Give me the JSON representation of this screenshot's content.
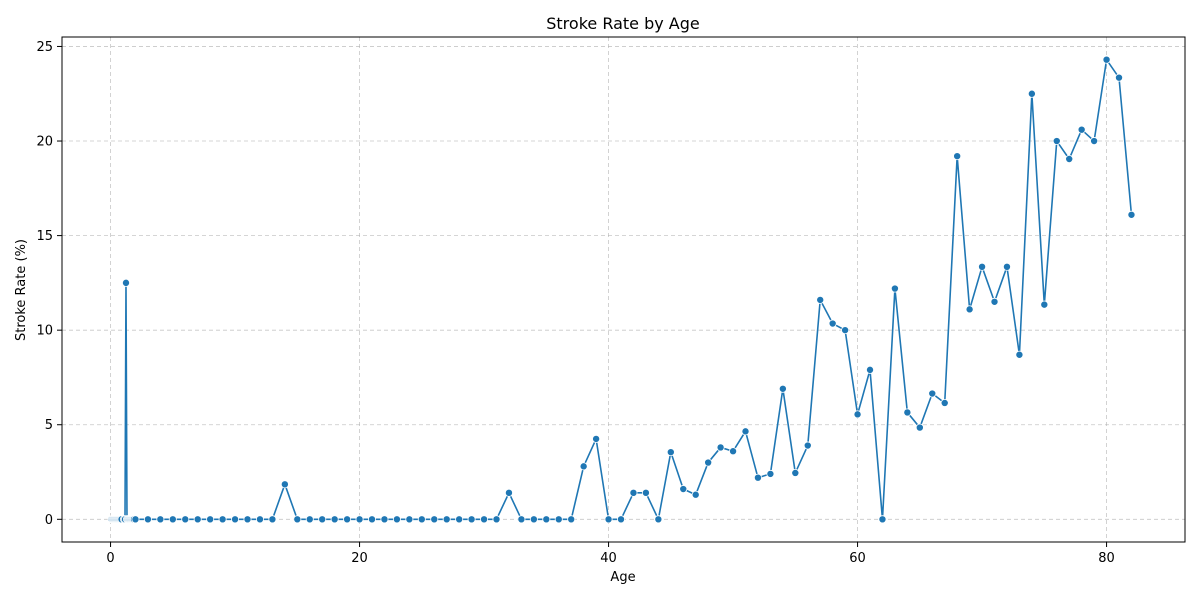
{
  "chart_data": {
    "type": "line",
    "title": "Stroke Rate by Age",
    "xlabel": "Age",
    "ylabel": "Stroke Rate (%)",
    "xlim": [
      -3.9,
      86.3
    ],
    "ylim": [
      -1.2,
      25.5
    ],
    "xticks": [
      0,
      20,
      40,
      60,
      80
    ],
    "yticks": [
      0,
      5,
      10,
      15,
      20,
      25
    ],
    "grid": true,
    "grid_style": "dashed",
    "line_color": "#1f77b4",
    "marker": "circle",
    "x": [
      0.08,
      0.16,
      0.24,
      0.32,
      0.4,
      0.48,
      0.56,
      0.64,
      0.72,
      0.8,
      0.88,
      1.08,
      1.16,
      1.24,
      1.32,
      1.4,
      1.48,
      1.56,
      1.64,
      1.72,
      1.8,
      1.88,
      2,
      3,
      4,
      5,
      6,
      7,
      8,
      9,
      10,
      11,
      12,
      13,
      14,
      15,
      16,
      17,
      18,
      19,
      20,
      21,
      22,
      23,
      24,
      25,
      26,
      27,
      28,
      29,
      30,
      31,
      32,
      33,
      34,
      35,
      36,
      37,
      38,
      39,
      40,
      41,
      42,
      43,
      44,
      45,
      46,
      47,
      48,
      49,
      50,
      51,
      52,
      53,
      54,
      55,
      56,
      57,
      58,
      59,
      60,
      61,
      62,
      63,
      64,
      65,
      66,
      67,
      68,
      69,
      70,
      71,
      72,
      73,
      74,
      75,
      76,
      77,
      78,
      79,
      80,
      81,
      82
    ],
    "y": [
      0,
      0,
      0,
      0,
      0,
      0,
      0,
      0,
      0,
      0,
      0,
      0,
      0,
      12.5,
      0,
      0,
      0,
      0,
      0,
      0,
      0,
      0,
      0,
      0,
      0,
      0,
      0,
      0,
      0,
      0,
      0,
      0,
      0,
      0,
      1.85,
      0,
      0,
      0,
      0,
      0,
      0,
      0,
      0,
      0,
      0,
      0,
      0,
      0,
      0,
      0,
      0,
      0,
      1.4,
      0,
      0,
      0,
      0,
      0,
      2.8,
      4.25,
      0,
      0,
      1.4,
      1.4,
      0,
      3.55,
      1.6,
      1.3,
      3.0,
      3.8,
      3.6,
      4.65,
      2.2,
      2.4,
      6.9,
      2.45,
      3.9,
      11.6,
      10.35,
      10.0,
      5.55,
      7.9,
      0,
      12.2,
      5.65,
      4.85,
      6.65,
      6.15,
      19.2,
      11.1,
      13.35,
      11.5,
      13.35,
      8.7,
      22.5,
      11.35,
      20.0,
      19.05,
      20.6,
      20.0,
      24.3,
      23.35,
      16.1
    ]
  }
}
